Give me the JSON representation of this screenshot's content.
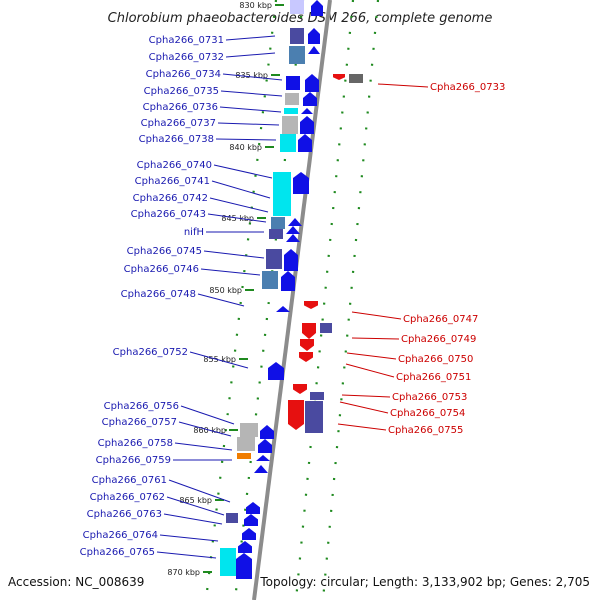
{
  "title": "Chlorobium phaeobacteroides DSM 266, complete genome",
  "footer": {
    "accession": "Accession: NC_008639",
    "summary": "Topology: circular; Length: 3,133,902 bp; Genes: 2,705"
  },
  "colors": {
    "backbone": "#8c8c8c",
    "forward_gene": "#1010e6",
    "reverse_gene": "#e61010",
    "tick": "#1f8a1f",
    "label_left": "#1a1ab0",
    "label_right": "#cc0000",
    "cyan_feature": "#00e5ee",
    "steel_feature": "#4b7fb0",
    "navy_feature": "#4a4aa0",
    "gray_feature": "#b5b5b5",
    "orange_feature": "#f07c00"
  },
  "kbp_markers": [
    "830 kbp",
    "835 kbp",
    "840 kbp",
    "845 kbp",
    "850 kbp",
    "855 kbp",
    "860 kbp",
    "865 kbp",
    "870 kbp"
  ],
  "left_genes": [
    "Cpha266_0731",
    "Cpha266_0732",
    "Cpha266_0734",
    "Cpha266_0735",
    "Cpha266_0736",
    "Cpha266_0737",
    "Cpha266_0738",
    "Cpha266_0740",
    "Cpha266_0741",
    "Cpha266_0742",
    "Cpha266_0743",
    "nifH",
    "Cpha266_0745",
    "Cpha266_0746",
    "Cpha266_0748",
    "Cpha266_0752",
    "Cpha266_0756",
    "Cpha266_0757",
    "Cpha266_0758",
    "Cpha266_0759",
    "Cpha266_0761",
    "Cpha266_0762",
    "Cpha266_0763",
    "Cpha266_0764",
    "Cpha266_0765"
  ],
  "right_genes": [
    "Cpha266_0733",
    "Cpha266_0747",
    "Cpha266_0749",
    "Cpha266_0750",
    "Cpha266_0751",
    "Cpha266_0753",
    "Cpha266_0754",
    "Cpha266_0755"
  ]
}
